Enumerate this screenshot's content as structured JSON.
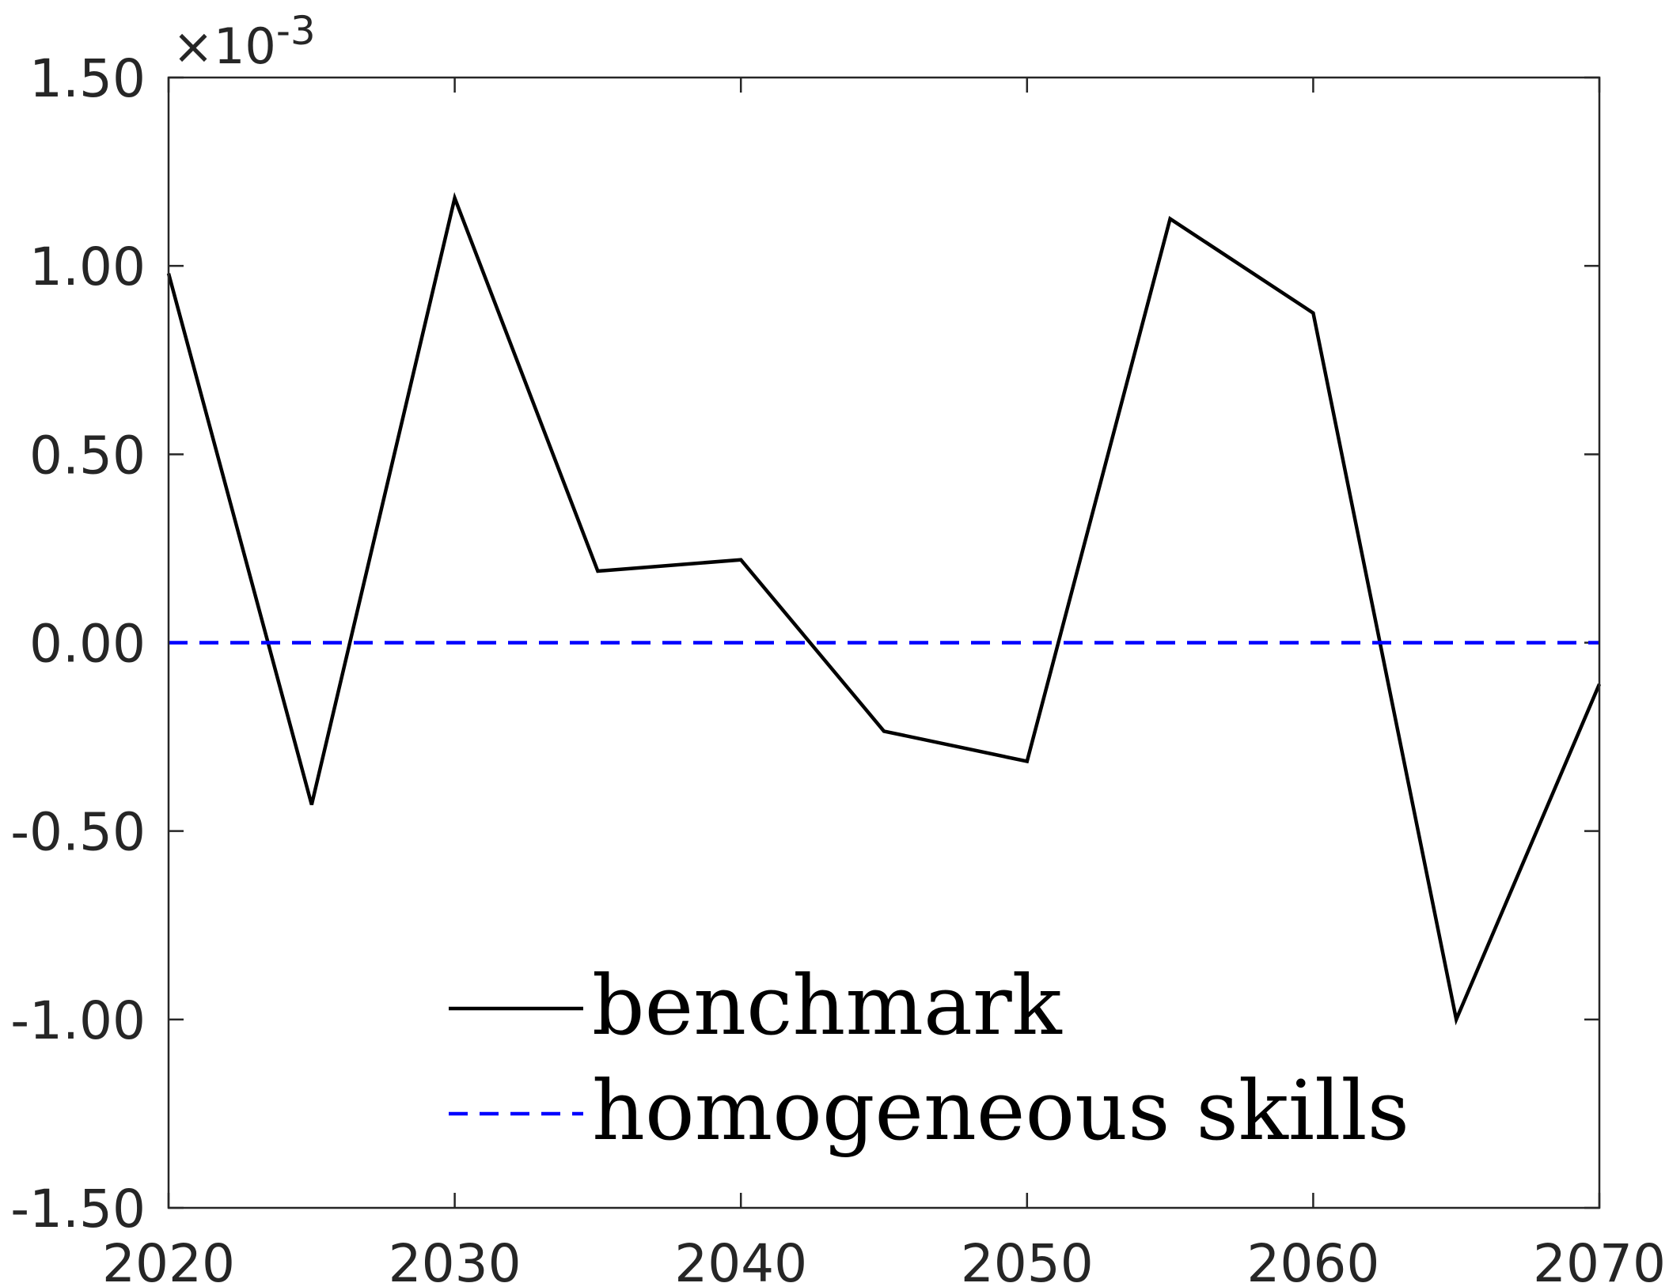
{
  "chart_data": {
    "type": "line",
    "title": "",
    "xlabel": "",
    "ylabel": "",
    "xlim": [
      2020,
      2070
    ],
    "ylim": [
      -1.5,
      1.5
    ],
    "y_exponent": {
      "base": "×10",
      "power": "-3"
    },
    "xticks": [
      2020,
      2030,
      2040,
      2050,
      2060,
      2070
    ],
    "xtick_labels": [
      "2020",
      "2030",
      "2040",
      "2050",
      "2060",
      "2070"
    ],
    "yticks": [
      -1.5,
      -1.0,
      -0.5,
      0.0,
      0.5,
      1.0,
      1.5
    ],
    "ytick_labels": [
      "-1.50",
      "-1.00",
      "-0.50",
      "0.00",
      "0.50",
      "1.00",
      "1.50"
    ],
    "grid": false,
    "legend_position": "bottom-center",
    "x": [
      2020,
      2025,
      2030,
      2035,
      2040,
      2045,
      2050,
      2055,
      2060,
      2065,
      2070
    ],
    "series": [
      {
        "name": "benchmark",
        "color": "#000000",
        "style": "solid",
        "values": [
          0.98,
          -0.43,
          1.18,
          0.19,
          0.22,
          -0.235,
          -0.315,
          1.125,
          0.875,
          -1.0,
          -0.11
        ]
      },
      {
        "name": "homogeneous skills",
        "color": "#0000ff",
        "style": "dashed",
        "values": [
          0,
          0,
          0,
          0,
          0,
          0,
          0,
          0,
          0,
          0,
          0
        ]
      }
    ]
  }
}
